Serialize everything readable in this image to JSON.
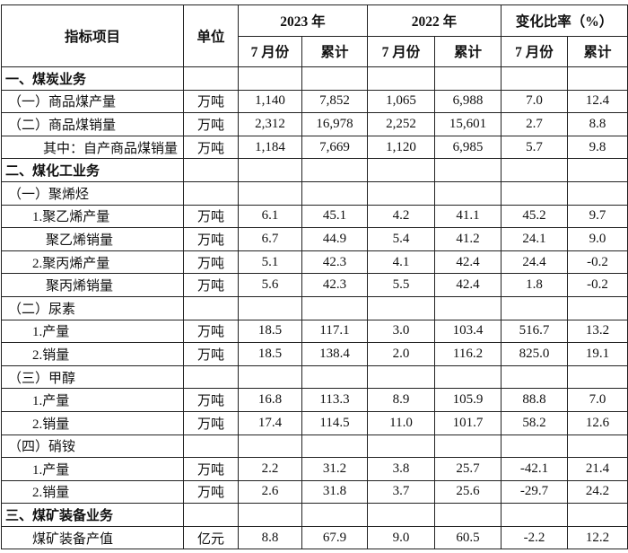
{
  "header": {
    "item": "指标项目",
    "unit": "单位",
    "year_2023": "2023 年",
    "year_2022": "2022 年",
    "change": "变化比率（%）",
    "month": "7 月份",
    "cumulative": "累计"
  },
  "rows": [
    {
      "label": "一、煤炭业务",
      "style": "sec"
    },
    {
      "label": "（一）商品煤产量",
      "style": "i1",
      "unit": "万吨",
      "values": [
        "1,140",
        "7,852",
        "1,065",
        "6,988",
        "7.0",
        "12.4"
      ]
    },
    {
      "label": "（二）商品煤销量",
      "style": "i1",
      "unit": "万吨",
      "values": [
        "2,312",
        "16,978",
        "2,252",
        "15,601",
        "2.7",
        "8.8"
      ]
    },
    {
      "label": "其中：自产商品煤销量",
      "style": "i4",
      "unit": "万吨",
      "values": [
        "1,184",
        "7,669",
        "1,120",
        "6,985",
        "5.7",
        "9.8"
      ]
    },
    {
      "label": "二、煤化工业务",
      "style": "sec"
    },
    {
      "label": "（一）聚烯烃",
      "style": "i1"
    },
    {
      "label": "1.聚乙烯产量",
      "style": "i2",
      "unit": "万吨",
      "values": [
        "6.1",
        "45.1",
        "4.2",
        "41.1",
        "45.2",
        "9.7"
      ]
    },
    {
      "label": "聚乙烯销量",
      "style": "i3",
      "unit": "万吨",
      "values": [
        "6.7",
        "44.9",
        "5.4",
        "41.2",
        "24.1",
        "9.0"
      ]
    },
    {
      "label": "2.聚丙烯产量",
      "style": "i2",
      "unit": "万吨",
      "values": [
        "5.1",
        "42.3",
        "4.1",
        "42.4",
        "24.4",
        "-0.2"
      ]
    },
    {
      "label": "聚丙烯销量",
      "style": "i3",
      "unit": "万吨",
      "values": [
        "5.6",
        "42.3",
        "5.5",
        "42.4",
        "1.8",
        "-0.2"
      ]
    },
    {
      "label": "（二）尿素",
      "style": "i1"
    },
    {
      "label": "1.产量",
      "style": "i2",
      "unit": "万吨",
      "values": [
        "18.5",
        "117.1",
        "3.0",
        "103.4",
        "516.7",
        "13.2"
      ]
    },
    {
      "label": "2.销量",
      "style": "i2",
      "unit": "万吨",
      "values": [
        "18.5",
        "138.4",
        "2.0",
        "116.2",
        "825.0",
        "19.1"
      ]
    },
    {
      "label": "（三）甲醇",
      "style": "i1"
    },
    {
      "label": "1.产量",
      "style": "i2",
      "unit": "万吨",
      "values": [
        "16.8",
        "113.3",
        "8.9",
        "105.9",
        "88.8",
        "7.0"
      ]
    },
    {
      "label": "2.销量",
      "style": "i2",
      "unit": "万吨",
      "values": [
        "17.4",
        "114.5",
        "11.0",
        "101.7",
        "58.2",
        "12.6"
      ]
    },
    {
      "label": "（四）硝铵",
      "style": "i1"
    },
    {
      "label": "1.产量",
      "style": "i2",
      "unit": "万吨",
      "values": [
        "2.2",
        "31.2",
        "3.8",
        "25.7",
        "-42.1",
        "21.4"
      ]
    },
    {
      "label": "2.销量",
      "style": "i2",
      "unit": "万吨",
      "values": [
        "2.6",
        "31.8",
        "3.7",
        "25.6",
        "-29.7",
        "24.2"
      ]
    },
    {
      "label": "三、煤矿装备业务",
      "style": "sec"
    },
    {
      "label": "煤矿装备产值",
      "style": "i2",
      "unit": "亿元",
      "values": [
        "8.8",
        "67.9",
        "9.0",
        "60.5",
        "-2.2",
        "12.2"
      ]
    }
  ]
}
